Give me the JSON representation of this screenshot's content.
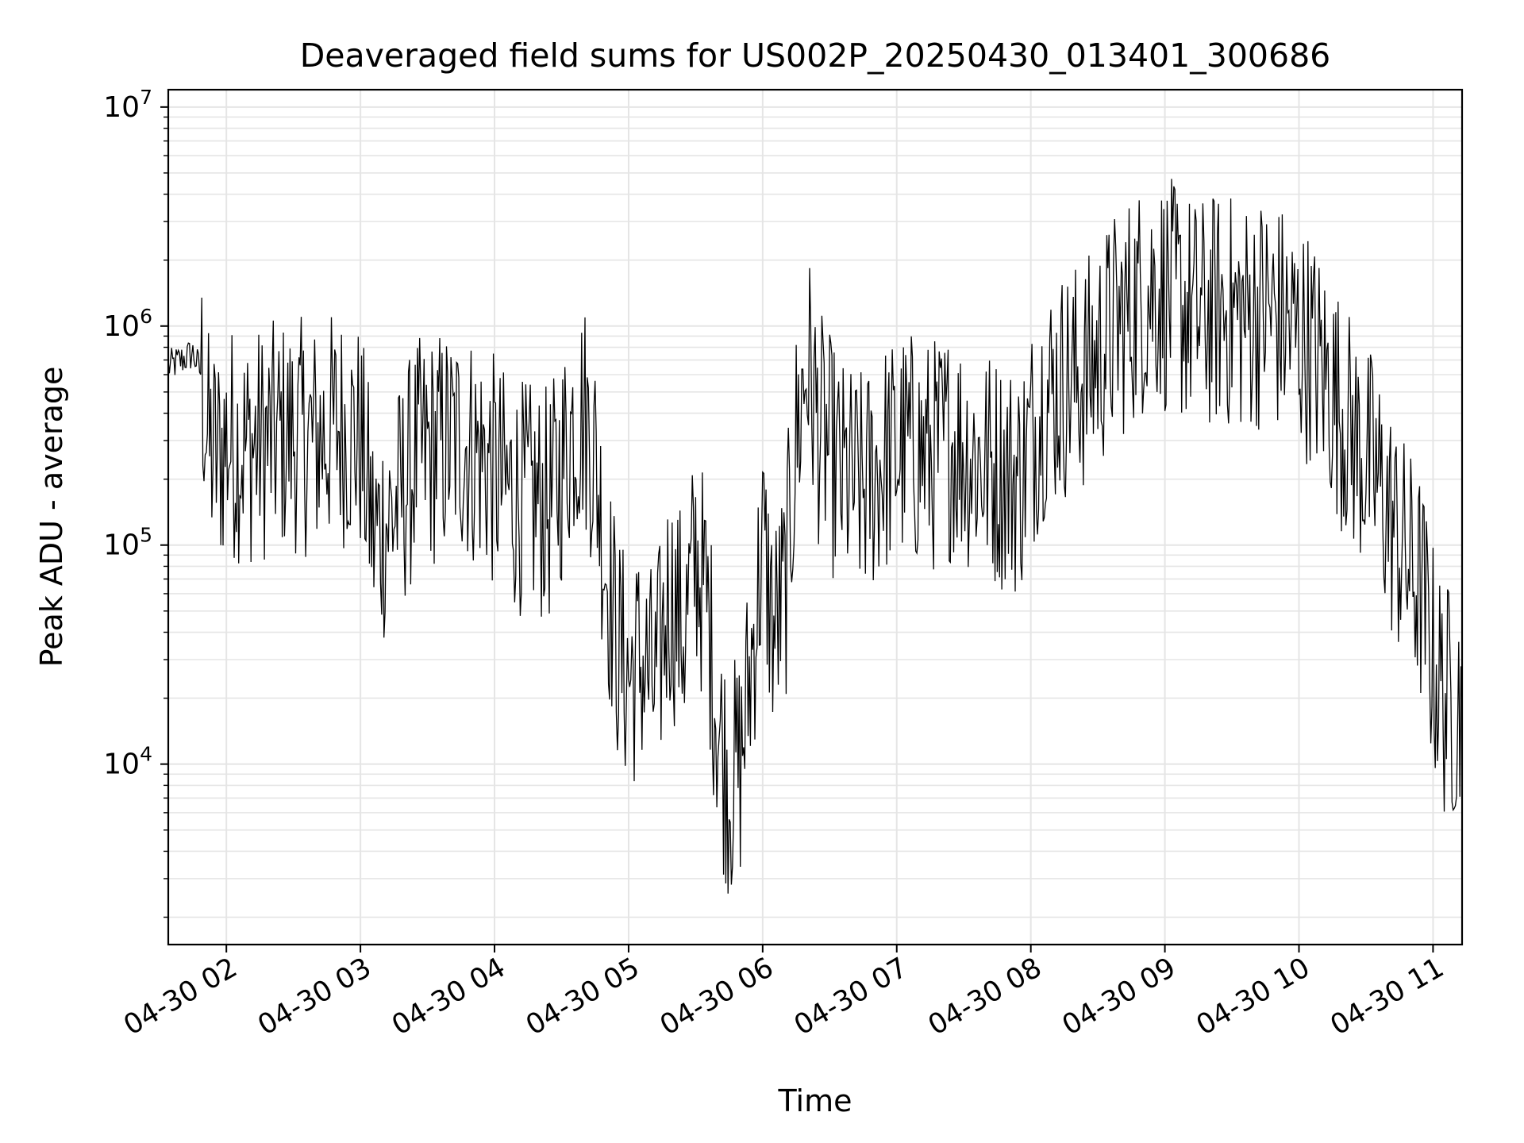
{
  "chart_data": {
    "type": "line",
    "title": "Deaveraged field sums for US002P_20250430_013401_300686",
    "xlabel": "Time",
    "ylabel": "Peak ADU - average",
    "yscale": "log",
    "ylim": [
      1500,
      12000000
    ],
    "xlim": [
      "2025-04-30 01:34",
      "2025-04-30 11:13"
    ],
    "grid": true,
    "x_ticks": [
      {
        "t": "2025-04-30 02:00",
        "label": "04-30 02"
      },
      {
        "t": "2025-04-30 03:00",
        "label": "04-30 03"
      },
      {
        "t": "2025-04-30 04:00",
        "label": "04-30 04"
      },
      {
        "t": "2025-04-30 05:00",
        "label": "04-30 05"
      },
      {
        "t": "2025-04-30 06:00",
        "label": "04-30 06"
      },
      {
        "t": "2025-04-30 07:00",
        "label": "04-30 07"
      },
      {
        "t": "2025-04-30 08:00",
        "label": "04-30 08"
      },
      {
        "t": "2025-04-30 09:00",
        "label": "04-30 09"
      },
      {
        "t": "2025-04-30 10:00",
        "label": "04-30 10"
      },
      {
        "t": "2025-04-30 11:00",
        "label": "04-30 11"
      }
    ],
    "y_ticks": [
      {
        "value": 10000,
        "base": "10",
        "exp": "4"
      },
      {
        "value": 100000,
        "base": "10",
        "exp": "5"
      },
      {
        "value": 1000000,
        "base": "10",
        "exp": "6"
      },
      {
        "value": 10000000,
        "base": "10",
        "exp": "7"
      }
    ],
    "line_color": "#000000",
    "grid_color": "#e5e5e5",
    "series": [
      {
        "x": [
          "2025-04-30 01:34",
          "2025-04-30 01:40",
          "2025-04-30 01:45",
          "2025-04-30 01:49",
          "2025-04-30 01:52",
          "2025-04-30 01:56",
          "2025-04-30 02:00",
          "2025-04-30 02:10",
          "2025-04-30 02:20",
          "2025-04-30 02:30",
          "2025-04-30 02:40",
          "2025-04-30 02:50",
          "2025-04-30 03:00",
          "2025-04-30 03:06",
          "2025-04-30 03:15",
          "2025-04-30 03:25",
          "2025-04-30 03:35",
          "2025-04-30 03:45",
          "2025-04-30 03:55",
          "2025-04-30 04:05",
          "2025-04-30 04:15",
          "2025-04-30 04:25",
          "2025-04-30 04:35",
          "2025-04-30 04:40",
          "2025-04-30 04:45",
          "2025-04-30 04:50",
          "2025-04-30 04:55",
          "2025-04-30 05:00",
          "2025-04-30 05:05",
          "2025-04-30 05:12",
          "2025-04-30 05:18",
          "2025-04-30 05:25",
          "2025-04-30 05:30",
          "2025-04-30 05:35",
          "2025-04-30 05:40",
          "2025-04-30 05:45",
          "2025-04-30 05:50",
          "2025-04-30 05:55",
          "2025-04-30 06:00",
          "2025-04-30 06:05",
          "2025-04-30 06:10",
          "2025-04-30 06:15",
          "2025-04-30 06:20",
          "2025-04-30 06:25",
          "2025-04-30 06:35",
          "2025-04-30 06:45",
          "2025-04-30 06:55",
          "2025-04-30 07:05",
          "2025-04-30 07:15",
          "2025-04-30 07:25",
          "2025-04-30 07:35",
          "2025-04-30 07:45",
          "2025-04-30 07:55",
          "2025-04-30 08:05",
          "2025-04-30 08:15",
          "2025-04-30 08:25",
          "2025-04-30 08:35",
          "2025-04-30 08:45",
          "2025-04-30 08:55",
          "2025-04-30 09:05",
          "2025-04-30 09:15",
          "2025-04-30 09:25",
          "2025-04-30 09:35",
          "2025-04-30 09:45",
          "2025-04-30 09:55",
          "2025-04-30 10:05",
          "2025-04-30 10:15",
          "2025-04-30 10:25",
          "2025-04-30 10:35",
          "2025-04-30 10:45",
          "2025-04-30 10:55",
          "2025-04-30 11:00",
          "2025-04-30 11:05",
          "2025-04-30 11:13"
        ],
        "y": [
          650000,
          700000,
          750000,
          600000,
          280000,
          250000,
          300000,
          280000,
          300000,
          320000,
          300000,
          350000,
          300000,
          110000,
          140000,
          250000,
          280000,
          300000,
          250000,
          180000,
          160000,
          150000,
          350000,
          400000,
          250000,
          80000,
          35000,
          25000,
          30000,
          22000,
          60000,
          40000,
          90000,
          55000,
          15000,
          8000,
          10000,
          30000,
          100000,
          40000,
          60000,
          300000,
          700000,
          350000,
          200000,
          180000,
          250000,
          280000,
          250000,
          300000,
          250000,
          220000,
          200000,
          450000,
          550000,
          600000,
          900000,
          1200000,
          1500000,
          1300000,
          1100000,
          1200000,
          1100000,
          1200000,
          1000000,
          800000,
          500000,
          300000,
          200000,
          100000,
          60000,
          30000,
          20000,
          18000
        ]
      }
    ]
  }
}
